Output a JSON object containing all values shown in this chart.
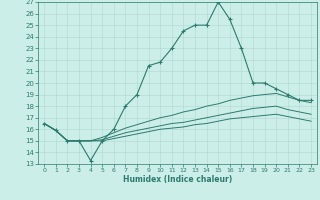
{
  "xlabel": "Humidex (Indice chaleur)",
  "bg_color": "#cceee8",
  "line_color": "#2d7a6e",
  "grid_color": "#b0d8d0",
  "xlim": [
    -0.5,
    23.5
  ],
  "ylim": [
    13,
    27
  ],
  "xticks": [
    0,
    1,
    2,
    3,
    4,
    5,
    6,
    7,
    8,
    9,
    10,
    11,
    12,
    13,
    14,
    15,
    16,
    17,
    18,
    19,
    20,
    21,
    22,
    23
  ],
  "yticks": [
    13,
    14,
    15,
    16,
    17,
    18,
    19,
    20,
    21,
    22,
    23,
    24,
    25,
    26,
    27
  ],
  "line1_x": [
    0,
    1,
    2,
    3,
    4,
    5,
    6,
    7,
    8,
    9,
    10,
    11,
    12,
    13,
    14,
    15,
    16,
    17,
    18,
    19,
    20,
    21,
    22,
    23
  ],
  "line1_y": [
    16.5,
    15.9,
    15.0,
    15.0,
    13.3,
    15.0,
    16.0,
    18.0,
    19.0,
    21.5,
    21.8,
    23.0,
    24.5,
    25.0,
    25.0,
    27.0,
    25.5,
    23.0,
    20.0,
    20.0,
    19.5,
    19.0,
    18.5,
    18.5
  ],
  "line2_x": [
    0,
    1,
    2,
    3,
    4,
    5,
    6,
    7,
    8,
    9,
    10,
    11,
    12,
    13,
    14,
    15,
    16,
    17,
    18,
    19,
    20,
    21,
    22,
    23
  ],
  "line2_y": [
    16.5,
    15.9,
    15.0,
    15.0,
    15.0,
    15.3,
    15.7,
    16.1,
    16.4,
    16.7,
    17.0,
    17.2,
    17.5,
    17.7,
    18.0,
    18.2,
    18.5,
    18.7,
    18.9,
    19.0,
    19.1,
    18.8,
    18.5,
    18.3
  ],
  "line3_x": [
    0,
    1,
    2,
    3,
    4,
    5,
    6,
    7,
    8,
    9,
    10,
    11,
    12,
    13,
    14,
    15,
    16,
    17,
    18,
    19,
    20,
    21,
    22,
    23
  ],
  "line3_y": [
    16.5,
    15.9,
    15.0,
    15.0,
    15.0,
    15.1,
    15.4,
    15.7,
    15.9,
    16.1,
    16.3,
    16.5,
    16.6,
    16.8,
    17.0,
    17.2,
    17.4,
    17.6,
    17.8,
    17.9,
    18.0,
    17.7,
    17.5,
    17.3
  ],
  "line4_x": [
    0,
    1,
    2,
    3,
    4,
    5,
    6,
    7,
    8,
    9,
    10,
    11,
    12,
    13,
    14,
    15,
    16,
    17,
    18,
    19,
    20,
    21,
    22,
    23
  ],
  "line4_y": [
    16.5,
    15.9,
    15.0,
    15.0,
    15.0,
    15.0,
    15.2,
    15.4,
    15.6,
    15.8,
    16.0,
    16.1,
    16.2,
    16.4,
    16.5,
    16.7,
    16.9,
    17.0,
    17.1,
    17.2,
    17.3,
    17.1,
    16.9,
    16.7
  ]
}
